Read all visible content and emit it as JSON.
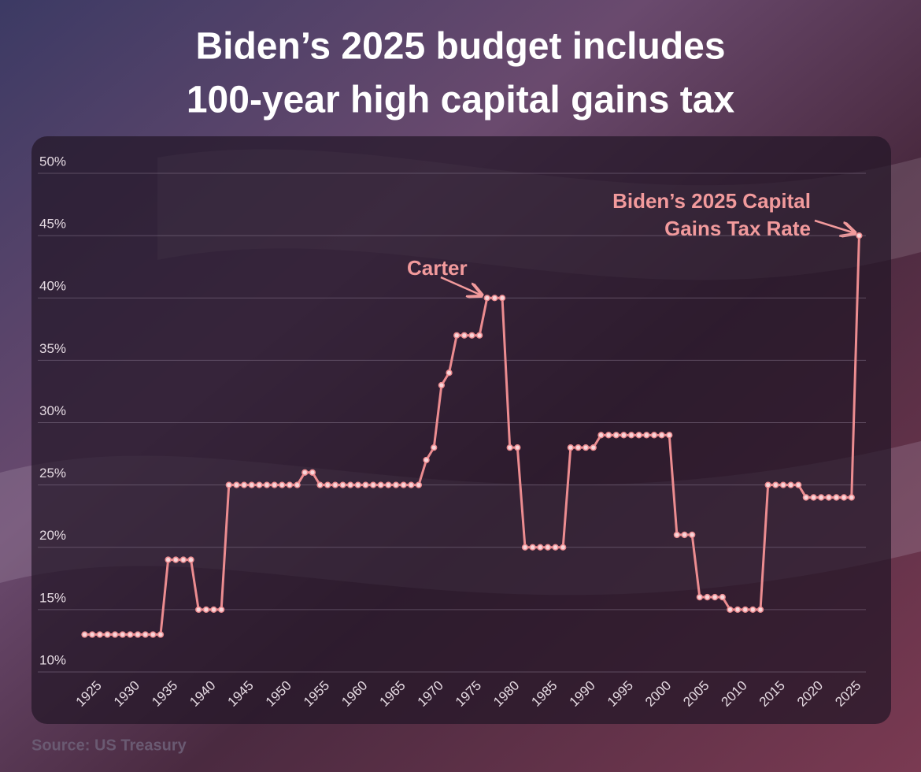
{
  "chart_data": {
    "type": "line",
    "title": [
      "Biden’s 2025 budget includes",
      "100-year high capital gains tax"
    ],
    "source": "Source: US Treasury",
    "x": [
      1923,
      1924,
      1925,
      1926,
      1927,
      1928,
      1929,
      1930,
      1931,
      1932,
      1933,
      1934,
      1935,
      1936,
      1937,
      1938,
      1939,
      1940,
      1941,
      1942,
      1943,
      1944,
      1945,
      1946,
      1947,
      1948,
      1949,
      1950,
      1951,
      1952,
      1953,
      1954,
      1955,
      1956,
      1957,
      1958,
      1959,
      1960,
      1961,
      1962,
      1963,
      1964,
      1965,
      1966,
      1967,
      1968,
      1969,
      1970,
      1971,
      1972,
      1973,
      1974,
      1975,
      1976,
      1977,
      1978,
      1979,
      1980,
      1981,
      1982,
      1983,
      1984,
      1985,
      1986,
      1987,
      1988,
      1989,
      1990,
      1991,
      1992,
      1993,
      1994,
      1995,
      1996,
      1997,
      1998,
      1999,
      2000,
      2001,
      2002,
      2003,
      2004,
      2005,
      2006,
      2007,
      2008,
      2009,
      2010,
      2011,
      2012,
      2013,
      2014,
      2015,
      2016,
      2017,
      2018,
      2019,
      2020,
      2021,
      2022,
      2023,
      2024,
      2025
    ],
    "series": [
      {
        "name": "Capital gains tax rate",
        "color": "#ec8c90",
        "values": [
          13,
          13,
          13,
          13,
          13,
          13,
          13,
          13,
          13,
          13,
          13,
          19,
          19,
          19,
          19,
          15,
          15,
          15,
          15,
          25,
          25,
          25,
          25,
          25,
          25,
          25,
          25,
          25,
          25,
          26,
          26,
          25,
          25,
          25,
          25,
          25,
          25,
          25,
          25,
          25,
          25,
          25,
          25,
          25,
          25,
          27,
          28,
          33,
          34,
          37,
          37,
          37,
          37,
          40,
          40,
          40,
          28,
          28,
          20,
          20,
          20,
          20,
          20,
          20,
          28,
          28,
          28,
          28,
          29,
          29,
          29,
          29,
          29,
          29,
          29,
          29,
          29,
          29,
          21,
          21,
          21,
          16,
          16,
          16,
          16,
          15,
          15,
          15,
          15,
          15,
          25,
          25,
          25,
          25,
          25,
          24,
          24,
          24,
          24,
          24,
          24,
          24,
          45
        ]
      }
    ],
    "xlim": [
      1916,
      2029
    ],
    "xticks": [
      1925,
      1930,
      1935,
      1940,
      1945,
      1950,
      1955,
      1960,
      1965,
      1970,
      1975,
      1980,
      1985,
      1990,
      1995,
      2000,
      2005,
      2010,
      2015,
      2020,
      2025
    ],
    "ylim": [
      10,
      50
    ],
    "yticks": [
      {
        "value": 10,
        "label": "10%"
      },
      {
        "value": 15,
        "label": "15%"
      },
      {
        "value": 20,
        "label": "20%"
      },
      {
        "value": 25,
        "label": "25%"
      },
      {
        "value": 30,
        "label": "30%"
      },
      {
        "value": 35,
        "label": "35%"
      },
      {
        "value": 40,
        "label": "40%"
      },
      {
        "value": 45,
        "label": "45%"
      },
      {
        "value": 50,
        "label": "50%"
      }
    ],
    "grid": true,
    "annotations": [
      {
        "text": [
          "Carter"
        ]
      },
      {
        "text": [
          "Biden’s 2025 Capital",
          "Gains Tax Rate"
        ]
      }
    ]
  }
}
